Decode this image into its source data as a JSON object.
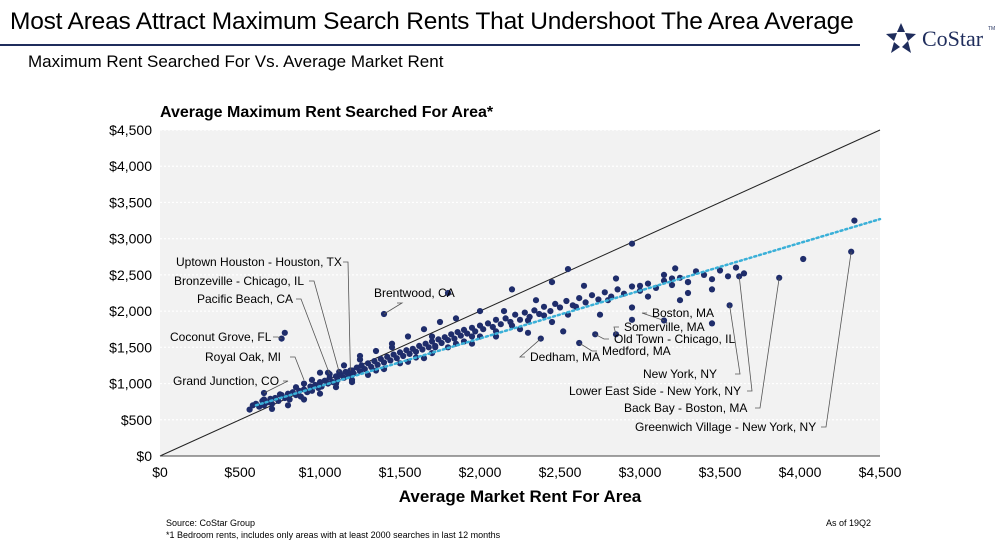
{
  "header": {
    "title": "Most Areas Attract Maximum Search Rents That Undershoot The Area Average",
    "subtitle": "Maximum Rent Searched For Vs. Average Market Rent"
  },
  "brand": {
    "name": "CoStar",
    "tm": "TM",
    "color": "#1f2d5c"
  },
  "footer": {
    "source": "Source: CoStar Group",
    "note": "*1 Bedroom rents, includes only areas with at least 2000 searches in last 12 months",
    "as_of": "As of 19Q2"
  },
  "chart_data": {
    "type": "scatter",
    "title": "Average Maximum Rent Searched For Area*",
    "xlabel": "Average Market Rent For Area",
    "ylabel": "",
    "xlim": [
      0,
      4500
    ],
    "ylim": [
      0,
      4500
    ],
    "xticks": [
      0,
      500,
      1000,
      1500,
      2000,
      2500,
      3000,
      3500,
      4000,
      4500
    ],
    "yticks": [
      0,
      500,
      1000,
      1500,
      2000,
      2500,
      3000,
      3500,
      4000,
      4500
    ],
    "xtick_labels": [
      "$0",
      "$500",
      "$1,000",
      "$1,500",
      "$2,000",
      "$2,500",
      "$3,000",
      "$3,500",
      "$4,000",
      "$4,500"
    ],
    "ytick_labels": [
      "$0",
      "$500",
      "$1,000",
      "$1,500",
      "$2,000",
      "$2,500",
      "$3,000",
      "$3,500",
      "$4,000",
      "$4,500"
    ],
    "grid": "horizontal-dotted",
    "point_color": "#1f2d6b",
    "reference_line": {
      "from": [
        0,
        0
      ],
      "to": [
        4500,
        4500
      ],
      "color": "#222222"
    },
    "trend_line": {
      "from": [
        600,
        700
      ],
      "to": [
        4500,
        3270
      ],
      "color": "#3ab0d8",
      "style": "dotted"
    },
    "points": [
      [
        560,
        640
      ],
      [
        580,
        700
      ],
      [
        600,
        720
      ],
      [
        620,
        680
      ],
      [
        640,
        760
      ],
      [
        650,
        700
      ],
      [
        670,
        740
      ],
      [
        690,
        790
      ],
      [
        700,
        720
      ],
      [
        720,
        800
      ],
      [
        740,
        760
      ],
      [
        760,
        840
      ],
      [
        780,
        800
      ],
      [
        800,
        860
      ],
      [
        810,
        780
      ],
      [
        830,
        880
      ],
      [
        850,
        840
      ],
      [
        870,
        900
      ],
      [
        880,
        820
      ],
      [
        900,
        920
      ],
      [
        920,
        880
      ],
      [
        940,
        960
      ],
      [
        950,
        900
      ],
      [
        970,
        980
      ],
      [
        990,
        940
      ],
      [
        1000,
        1020
      ],
      [
        1010,
        960
      ],
      [
        1030,
        1040
      ],
      [
        1050,
        1000
      ],
      [
        1060,
        1080
      ],
      [
        1080,
        1020
      ],
      [
        1100,
        1100
      ],
      [
        1110,
        1050
      ],
      [
        1130,
        1120
      ],
      [
        1150,
        1080
      ],
      [
        1160,
        1160
      ],
      [
        1180,
        1110
      ],
      [
        1200,
        1180
      ],
      [
        1210,
        1140
      ],
      [
        1230,
        1220
      ],
      [
        1250,
        1170
      ],
      [
        1260,
        1250
      ],
      [
        1280,
        1200
      ],
      [
        1300,
        1280
      ],
      [
        1320,
        1230
      ],
      [
        1340,
        1310
      ],
      [
        1360,
        1260
      ],
      [
        1380,
        1340
      ],
      [
        1400,
        1290
      ],
      [
        1420,
        1370
      ],
      [
        1440,
        1320
      ],
      [
        1460,
        1400
      ],
      [
        1480,
        1350
      ],
      [
        1500,
        1430
      ],
      [
        1520,
        1380
      ],
      [
        1540,
        1460
      ],
      [
        1560,
        1410
      ],
      [
        1580,
        1480
      ],
      [
        1600,
        1440
      ],
      [
        1620,
        1520
      ],
      [
        1640,
        1470
      ],
      [
        1660,
        1550
      ],
      [
        1680,
        1500
      ],
      [
        1700,
        1580
      ],
      [
        1720,
        1520
      ],
      [
        1740,
        1610
      ],
      [
        1760,
        1560
      ],
      [
        1780,
        1640
      ],
      [
        1800,
        1600
      ],
      [
        1820,
        1680
      ],
      [
        1840,
        1620
      ],
      [
        1860,
        1710
      ],
      [
        1880,
        1660
      ],
      [
        1900,
        1740
      ],
      [
        1920,
        1690
      ],
      [
        1950,
        1770
      ],
      [
        1970,
        1720
      ],
      [
        2000,
        1800
      ],
      [
        2020,
        1750
      ],
      [
        2050,
        1830
      ],
      [
        2080,
        1780
      ],
      [
        2100,
        1880
      ],
      [
        2130,
        1820
      ],
      [
        2160,
        1900
      ],
      [
        2190,
        1850
      ],
      [
        2220,
        1950
      ],
      [
        2250,
        1880
      ],
      [
        2280,
        1980
      ],
      [
        2310,
        1920
      ],
      [
        2340,
        2010
      ],
      [
        2370,
        1960
      ],
      [
        2400,
        2060
      ],
      [
        2440,
        2000
      ],
      [
        2470,
        2100
      ],
      [
        2500,
        2050
      ],
      [
        2540,
        2140
      ],
      [
        2580,
        2080
      ],
      [
        2620,
        2180
      ],
      [
        2660,
        2120
      ],
      [
        2700,
        2220
      ],
      [
        2740,
        2160
      ],
      [
        2780,
        2260
      ],
      [
        2820,
        2200
      ],
      [
        2860,
        2300
      ],
      [
        2900,
        2240
      ],
      [
        2950,
        2340
      ],
      [
        3000,
        2280
      ],
      [
        3050,
        2380
      ],
      [
        3100,
        2320
      ],
      [
        3150,
        2420
      ],
      [
        3200,
        2360
      ],
      [
        3250,
        2460
      ],
      [
        3300,
        2400
      ],
      [
        3400,
        2500
      ],
      [
        3450,
        2440
      ],
      [
        3500,
        2560
      ],
      [
        3550,
        2480
      ],
      [
        3600,
        2600
      ],
      [
        3650,
        2520
      ],
      [
        900,
        1000
      ],
      [
        1000,
        1150
      ],
      [
        1100,
        1000
      ],
      [
        1200,
        1050
      ],
      [
        1250,
        1380
      ],
      [
        1350,
        1180
      ],
      [
        1450,
        1500
      ],
      [
        1550,
        1300
      ],
      [
        1650,
        1350
      ],
      [
        1700,
        1650
      ],
      [
        1850,
        1550
      ],
      [
        1950,
        1650
      ],
      [
        2100,
        1650
      ],
      [
        2150,
        2000
      ],
      [
        2250,
        1750
      ],
      [
        2350,
        2150
      ],
      [
        2450,
        1850
      ],
      [
        2550,
        1950
      ],
      [
        2650,
        2350
      ],
      [
        2750,
        1950
      ],
      [
        2850,
        2450
      ],
      [
        2950,
        2050
      ],
      [
        3050,
        2200
      ],
      [
        3150,
        2500
      ],
      [
        3250,
        2150
      ],
      [
        3350,
        2550
      ],
      [
        3450,
        2300
      ],
      [
        2450,
        2400
      ],
      [
        2200,
        2300
      ],
      [
        2000,
        2000
      ],
      [
        1850,
        1900
      ],
      [
        1750,
        1850
      ],
      [
        1650,
        1750
      ],
      [
        1550,
        1650
      ],
      [
        1450,
        1550
      ],
      [
        1350,
        1450
      ],
      [
        1250,
        1330
      ],
      [
        1150,
        1250
      ],
      [
        1050,
        1150
      ],
      [
        950,
        1050
      ],
      [
        850,
        950
      ],
      [
        750,
        850
      ],
      [
        650,
        780
      ],
      [
        700,
        650
      ],
      [
        800,
        700
      ],
      [
        900,
        780
      ],
      [
        1000,
        860
      ],
      [
        1100,
        950
      ],
      [
        1200,
        1020
      ],
      [
        1300,
        1120
      ],
      [
        1400,
        1200
      ],
      [
        1500,
        1280
      ],
      [
        1600,
        1360
      ],
      [
        1700,
        1420
      ],
      [
        1800,
        1500
      ],
      [
        1900,
        1580
      ],
      [
        2000,
        1650
      ],
      [
        2100,
        1720
      ],
      [
        2200,
        1800
      ],
      [
        2300,
        1870
      ],
      [
        2400,
        1940
      ],
      [
        2600,
        2060
      ],
      [
        2800,
        2150
      ],
      [
        3000,
        2350
      ],
      [
        3200,
        2450
      ],
      [
        3300,
        2250
      ],
      [
        1720,
        1500
      ],
      [
        1950,
        1550
      ],
      [
        2300,
        1700
      ],
      [
        2380,
        1620
      ],
      [
        2520,
        1720
      ],
      [
        2620,
        1560
      ],
      [
        2720,
        1680
      ],
      [
        2850,
        1680
      ],
      [
        2950,
        1880
      ],
      [
        3150,
        1870
      ],
      [
        3450,
        1830
      ],
      [
        3560,
        2080
      ],
      [
        3620,
        2480
      ],
      [
        3870,
        2460
      ],
      [
        4020,
        2720
      ],
      [
        4320,
        2820
      ],
      [
        4340,
        3250
      ],
      [
        1800,
        2250
      ],
      [
        1400,
        1960
      ],
      [
        2950,
        2930
      ],
      [
        3220,
        2590
      ],
      [
        2550,
        2580
      ],
      [
        3300,
        2400
      ],
      [
        780,
        1700
      ],
      [
        760,
        1620
      ],
      [
        650,
        870
      ],
      [
        1190,
        1180
      ],
      [
        1120,
        1160
      ],
      [
        1060,
        1130
      ]
    ],
    "labels": [
      {
        "text": "Uptown Houston - Houston, TX",
        "point": [
          1190,
          1180
        ],
        "anchor": "right"
      },
      {
        "text": "Bronzeville  - Chicago, IL",
        "point": [
          1120,
          1160
        ],
        "anchor": "right"
      },
      {
        "text": "Pacific Beach, CA",
        "point": [
          1060,
          1130
        ],
        "anchor": "right"
      },
      {
        "text": "Brentwood, CA",
        "point": [
          1400,
          1960
        ],
        "anchor": "right"
      },
      {
        "text": "Coconut Grove, FL",
        "point": [
          760,
          1620
        ],
        "anchor": "right"
      },
      {
        "text": "Royal Oak, MI",
        "point": [
          900,
          1050
        ],
        "anchor": "right"
      },
      {
        "text": "Grand Junction, CO",
        "point": [
          650,
          870
        ],
        "anchor": "right"
      },
      {
        "text": "Boston, MA",
        "point": [
          3150,
          1870
        ],
        "anchor": "left"
      },
      {
        "text": "Somerville, MA",
        "point": [
          2850,
          1680
        ],
        "anchor": "left"
      },
      {
        "text": "Old Town - Chicago, IL",
        "point": [
          2720,
          1680
        ],
        "anchor": "left"
      },
      {
        "text": "Medford, MA",
        "point": [
          2620,
          1560
        ],
        "anchor": "left"
      },
      {
        "text": "Dedham, MA",
        "point": [
          2380,
          1620
        ],
        "anchor": "left"
      },
      {
        "text": "New York, NY",
        "point": [
          3560,
          2080
        ],
        "anchor": "right"
      },
      {
        "text": "Lower East Side - New York, NY",
        "point": [
          3620,
          2480
        ],
        "anchor": "right"
      },
      {
        "text": "Back Bay - Boston, MA",
        "point": [
          3870,
          2460
        ],
        "anchor": "right"
      },
      {
        "text": "Greenwich Village - New York, NY",
        "point": [
          4320,
          2820
        ],
        "anchor": "right"
      }
    ]
  }
}
